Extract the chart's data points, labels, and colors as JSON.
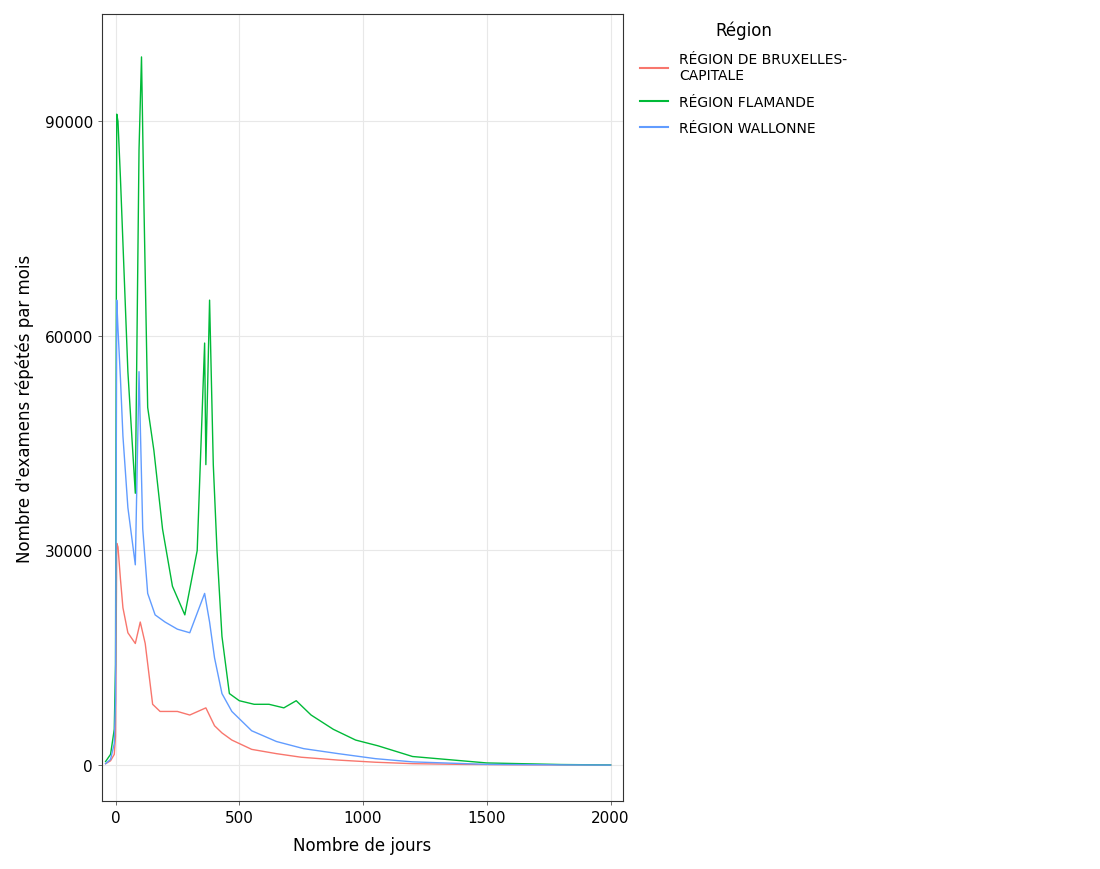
{
  "title": "",
  "xlabel": "Nombre de jours",
  "ylabel": "Nombre d'examens répétés par mois",
  "xlim": [
    -55,
    2050
  ],
  "ylim": [
    -5000,
    105000
  ],
  "yticks": [
    0,
    30000,
    60000,
    90000
  ],
  "xticks": [
    0,
    500,
    1000,
    1500,
    2000
  ],
  "background_color": "#ffffff",
  "panel_color": "#ffffff",
  "grid_color": "#e8e8e8",
  "legend_title": "Région",
  "legend_entries": [
    "RÉGION DE BRUXELLES-\nCAPITALE",
    "RÉGION FLAMANDE",
    "RÉGION WALLONNE"
  ],
  "colors": {
    "bruxelles": "#F8766D",
    "flamande": "#00BA38",
    "wallonne": "#619CFF"
  },
  "bruxelles_x": [
    -40,
    -20,
    -5,
    0,
    5,
    10,
    20,
    30,
    50,
    80,
    100,
    120,
    150,
    180,
    200,
    250,
    300,
    365,
    400,
    430,
    470,
    550,
    650,
    750,
    900,
    1050,
    1200,
    1400,
    1600,
    2000
  ],
  "bruxelles_y": [
    200,
    600,
    1500,
    4000,
    31000,
    30500,
    26000,
    22000,
    18500,
    17000,
    20000,
    17000,
    8500,
    7500,
    7500,
    7500,
    7000,
    8000,
    5500,
    4500,
    3500,
    2200,
    1600,
    1100,
    700,
    400,
    200,
    100,
    50,
    5
  ],
  "flamande_x": [
    -40,
    -20,
    -5,
    0,
    5,
    10,
    20,
    30,
    50,
    80,
    95,
    105,
    115,
    130,
    155,
    190,
    230,
    280,
    330,
    360,
    365,
    380,
    395,
    410,
    430,
    460,
    500,
    560,
    620,
    680,
    730,
    790,
    880,
    970,
    1060,
    1200,
    1500,
    1800,
    2000
  ],
  "flamande_y": [
    500,
    1500,
    5000,
    14000,
    91000,
    90000,
    82000,
    73000,
    55000,
    38000,
    86000,
    99000,
    78000,
    50000,
    44000,
    33000,
    25000,
    21000,
    30000,
    59000,
    42000,
    65000,
    42000,
    30000,
    18000,
    10000,
    9000,
    8500,
    8500,
    8000,
    9000,
    7000,
    5000,
    3500,
    2700,
    1200,
    300,
    80,
    20
  ],
  "wallonne_x": [
    -40,
    -20,
    -5,
    0,
    5,
    10,
    20,
    30,
    50,
    80,
    95,
    110,
    130,
    160,
    200,
    250,
    300,
    360,
    380,
    400,
    430,
    470,
    550,
    650,
    760,
    900,
    1050,
    1200,
    1500,
    1800,
    2000
  ],
  "wallonne_y": [
    200,
    800,
    3000,
    9000,
    65000,
    61000,
    54000,
    46000,
    36000,
    28000,
    55000,
    33000,
    24000,
    21000,
    20000,
    19000,
    18500,
    24000,
    20000,
    15000,
    10000,
    7500,
    4800,
    3300,
    2300,
    1600,
    900,
    450,
    100,
    30,
    5
  ]
}
